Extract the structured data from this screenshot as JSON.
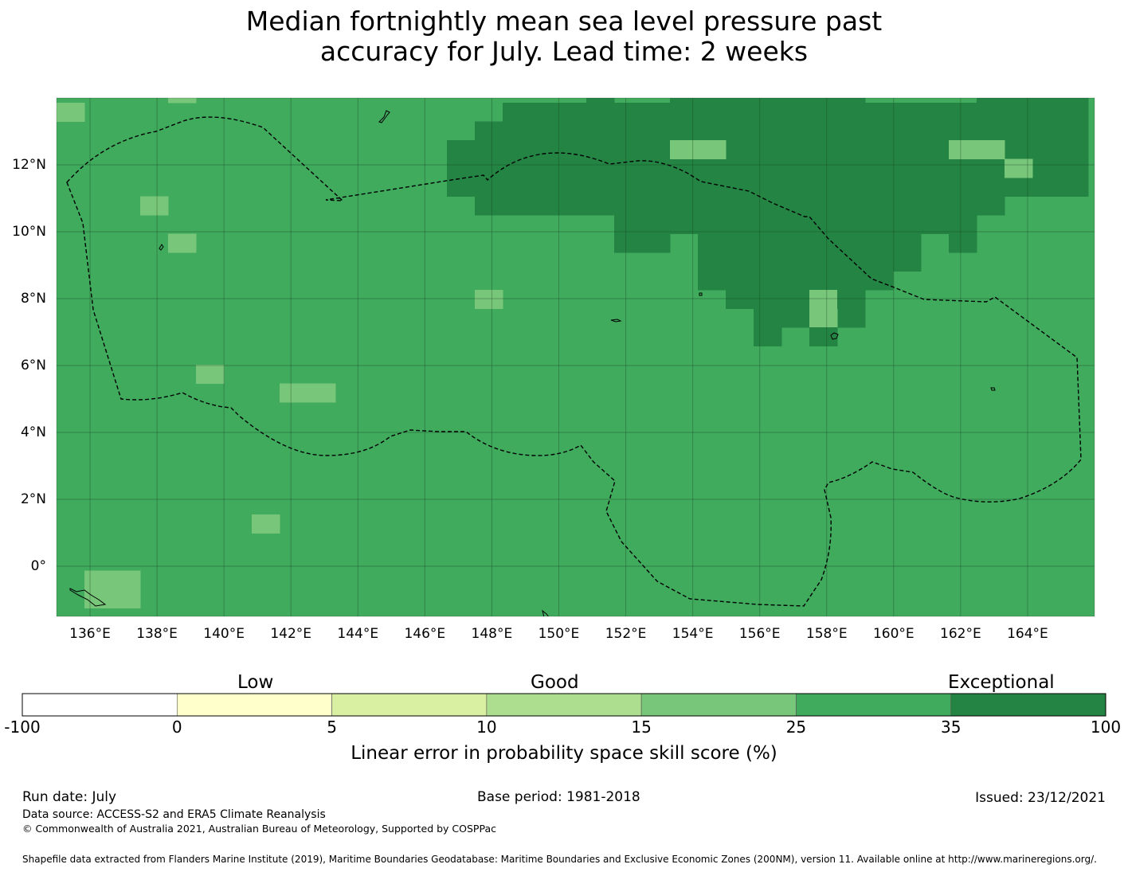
{
  "title": {
    "line1": "Median fortnightly mean sea level pressure past",
    "line2": "accuracy for July. Lead time: 2 weeks"
  },
  "map": {
    "lon_range": [
      135,
      166
    ],
    "lat_range": [
      -1.5,
      14
    ],
    "lon_ticks": [
      "136°E",
      "138°E",
      "140°E",
      "142°E",
      "144°E",
      "146°E",
      "148°E",
      "150°E",
      "152°E",
      "154°E",
      "156°E",
      "158°E",
      "160°E",
      "162°E",
      "164°E"
    ],
    "lat_ticks": [
      "12°N",
      "10°N",
      "8°N",
      "6°N",
      "4°N",
      "2°N",
      "0°"
    ],
    "grid": true,
    "background_color": "#40aa5d",
    "boundary_line": "dashed",
    "cells_note": "grid cells colored by skill category; most of domain 25–35, northeast region >35"
  },
  "colorbar": {
    "categories": [
      "Low",
      "Good",
      "Exceptional"
    ],
    "ticks": [
      "-100",
      "0",
      "5",
      "10",
      "15",
      "25",
      "35",
      "100"
    ],
    "colors": [
      "#ffffff",
      "#ffffcc",
      "#d9f0a3",
      "#addd8e",
      "#78c679",
      "#41ab5d",
      "#238443"
    ],
    "label": "Linear error in probability space skill score (%)"
  },
  "footer": {
    "run_date": "Run date: July",
    "base_period": "Base period: 1981-2018",
    "issued": "Issued: 23/12/2021",
    "data_source": "Data source: ACCESS-S2 and ERA5 Climate Reanalysis",
    "copyright": "© Commonwealth of Australia 2021, Australian Bureau of Meteorology, Supported by COSPPac",
    "shapefile": "Shapefile data extracted from Flanders Marine Institute (2019), Maritime Boundaries Geodatabase: Maritime Boundaries and Exclusive Economic Zones (200NM), version 11. Available online at http://www.marineregions.org/."
  }
}
